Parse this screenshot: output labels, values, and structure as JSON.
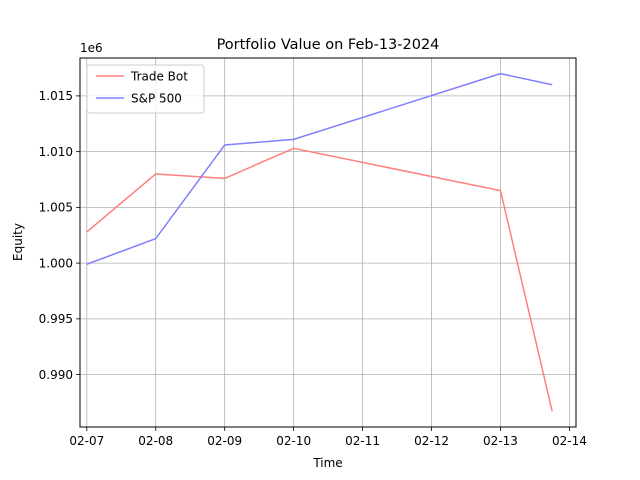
{
  "chart_data": {
    "type": "line",
    "title": "Portfolio Value on Feb-13-2024",
    "xlabel": "Time",
    "ylabel": "Equity",
    "y_offset_label": "1e6",
    "x_tick_labels": [
      "02-07",
      "02-08",
      "02-09",
      "02-10",
      "02-11",
      "02-12",
      "02-13",
      "02-14"
    ],
    "y_tick_labels": [
      "0.990",
      "0.995",
      "1.000",
      "1.005",
      "1.010",
      "1.015"
    ],
    "xlim": [
      "2024-02-06 21:38",
      "2024-02-14 02:17"
    ],
    "ylim": [
      985300,
      1018400
    ],
    "grid": true,
    "legend": "upper left",
    "series": [
      {
        "name": "Trade Bot",
        "color": "#ff7f7f",
        "points": [
          {
            "x": "2024-02-07",
            "y": 1002800
          },
          {
            "x": "2024-02-08",
            "y": 1008000
          },
          {
            "x": "2024-02-09",
            "y": 1007600
          },
          {
            "x": "2024-02-10",
            "y": 1010300
          },
          {
            "x": "2024-02-13",
            "y": 1006500
          },
          {
            "x": "2024-02-13 18:00",
            "y": 986700
          }
        ]
      },
      {
        "name": "S&P 500",
        "color": "#7f7fff",
        "points": [
          {
            "x": "2024-02-07",
            "y": 999900
          },
          {
            "x": "2024-02-08",
            "y": 1002200
          },
          {
            "x": "2024-02-09",
            "y": 1010600
          },
          {
            "x": "2024-02-10",
            "y": 1011100
          },
          {
            "x": "2024-02-13",
            "y": 1017000
          },
          {
            "x": "2024-02-13 18:00",
            "y": 1016000
          }
        ]
      }
    ]
  }
}
